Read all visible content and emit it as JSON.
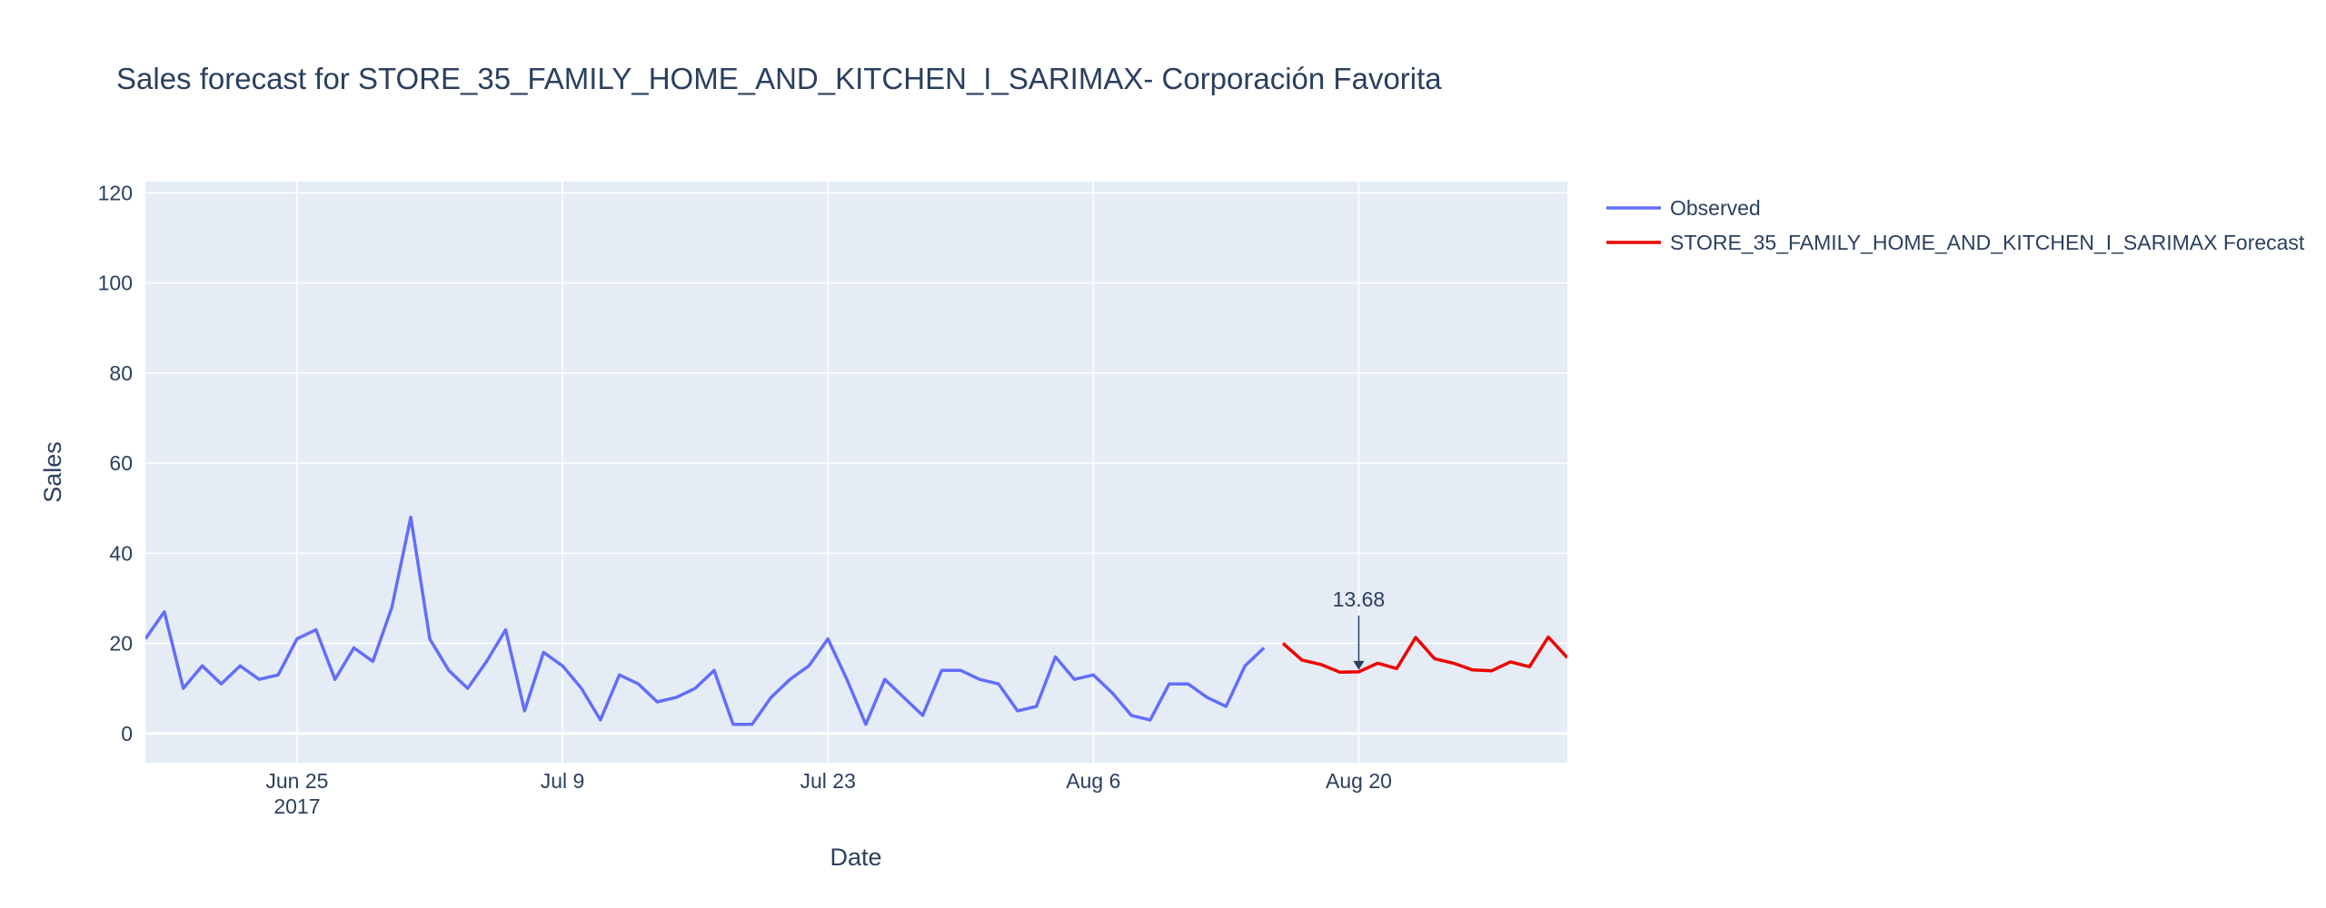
{
  "chart_data": {
    "type": "line",
    "title": "Sales forecast for STORE_35_FAMILY_HOME_AND_KITCHEN_I_SARIMAX- Corporación Favorita",
    "xlabel": "Date",
    "ylabel": "Sales",
    "xlim": [
      "2017-06-17",
      "2017-08-31"
    ],
    "ylim": [
      -6.5,
      122.5
    ],
    "grid": true,
    "legend_position": "top-right",
    "x_ticks": [
      {
        "date": "2017-06-25",
        "label": "Jun 25",
        "sublabel": "2017"
      },
      {
        "date": "2017-07-09",
        "label": "Jul 9",
        "sublabel": ""
      },
      {
        "date": "2017-07-23",
        "label": "Jul 23",
        "sublabel": ""
      },
      {
        "date": "2017-08-06",
        "label": "Aug 6",
        "sublabel": ""
      },
      {
        "date": "2017-08-20",
        "label": "Aug 20",
        "sublabel": ""
      }
    ],
    "y_ticks": [
      0,
      20,
      40,
      60,
      80,
      100,
      120
    ],
    "series": [
      {
        "name": "Observed",
        "color": "#636efa",
        "start_date": "2017-06-17",
        "values": [
          21,
          27,
          10,
          15,
          11,
          15,
          12,
          13,
          21,
          23,
          12,
          19,
          16,
          28,
          48,
          21,
          14,
          10,
          16,
          23,
          5,
          18,
          15,
          10,
          3,
          13,
          11,
          7,
          8,
          10,
          14,
          2,
          2,
          8,
          12,
          15,
          21,
          12,
          2,
          12,
          8,
          4,
          14,
          14,
          12,
          11,
          5,
          6,
          17,
          12,
          13,
          9,
          4,
          3,
          11,
          11,
          8,
          6,
          15,
          19
        ]
      },
      {
        "name": "STORE_35_FAMILY_HOME_AND_KITCHEN_I_SARIMAX Forecast",
        "color": "#ee0000",
        "start_date": "2017-08-16",
        "values": [
          20,
          16.3,
          15.3,
          13.6,
          13.68,
          15.6,
          14.4,
          21.3,
          16.6,
          15.6,
          14.1,
          13.9,
          15.9,
          14.8,
          21.4,
          16.8
        ]
      }
    ],
    "annotations": [
      {
        "date": "2017-08-20",
        "value": 13.68,
        "text": "13.68"
      }
    ]
  }
}
